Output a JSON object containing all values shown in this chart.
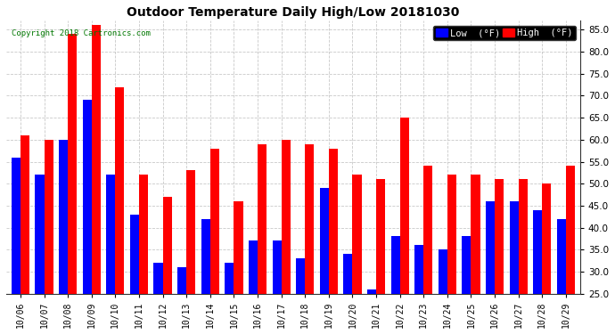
{
  "title": "Outdoor Temperature Daily High/Low 20181030",
  "copyright": "Copyright 2018 Cartronics.com",
  "legend_low": "Low  (°F)",
  "legend_high": "High  (°F)",
  "low_color": "#0000ff",
  "high_color": "#ff0000",
  "background_color": "#ffffff",
  "grid_color": "#bbbbbb",
  "ylim": [
    25.0,
    87.0
  ],
  "yticks": [
    25.0,
    30.0,
    35.0,
    40.0,
    45.0,
    50.0,
    55.0,
    60.0,
    65.0,
    70.0,
    75.0,
    80.0,
    85.0
  ],
  "dates": [
    "10/06",
    "10/07",
    "10/08",
    "10/09",
    "10/10",
    "10/11",
    "10/12",
    "10/13",
    "10/14",
    "10/15",
    "10/16",
    "10/17",
    "10/18",
    "10/19",
    "10/20",
    "10/21",
    "10/22",
    "10/23",
    "10/24",
    "10/25",
    "10/26",
    "10/27",
    "10/28",
    "10/29"
  ],
  "highs": [
    61,
    60,
    84,
    86,
    72,
    52,
    47,
    53,
    58,
    46,
    59,
    60,
    59,
    58,
    52,
    51,
    65,
    54,
    52,
    52,
    51,
    51,
    50,
    54
  ],
  "lows": [
    56,
    52,
    60,
    69,
    52,
    43,
    32,
    31,
    42,
    32,
    37,
    37,
    33,
    49,
    34,
    26,
    38,
    36,
    35,
    38,
    46,
    46,
    44,
    42
  ],
  "figsize": [
    6.9,
    3.75
  ],
  "dpi": 100,
  "bar_width": 0.38,
  "title_fontsize": 10,
  "tick_fontsize": 7,
  "ytick_fontsize": 7.5,
  "copyright_color": "#007700",
  "copyright_fontsize": 6.5,
  "legend_fontsize": 7.5
}
